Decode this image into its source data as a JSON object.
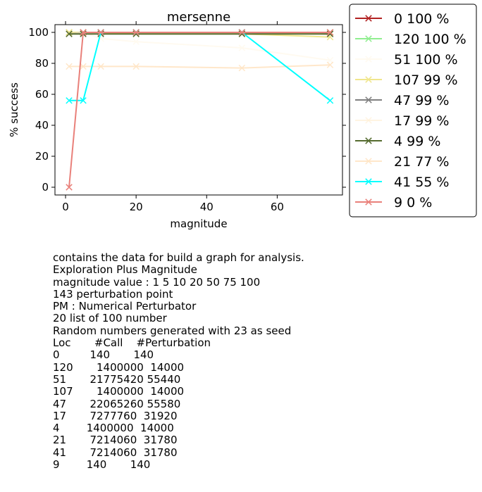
{
  "chart_data": {
    "type": "line",
    "title": "mersenne",
    "xlabel": "magnitude",
    "ylabel": "% success",
    "xlim": [
      -3,
      78.5
    ],
    "ylim": [
      -5,
      105
    ],
    "xticks": [
      0,
      20,
      40,
      60
    ],
    "yticks": [
      0,
      20,
      40,
      60,
      80,
      100
    ],
    "grid": false,
    "legend_position": "outside-right",
    "x": [
      1,
      5,
      10,
      20,
      50,
      75
    ],
    "series": [
      {
        "name": "0 100 %",
        "color": "#b22222",
        "alpha": 1.0,
        "values": [
          100,
          100,
          100,
          100,
          100,
          100
        ]
      },
      {
        "name": "120 100 %",
        "color": "#90ee90",
        "alpha": 1.0,
        "values": [
          100,
          100,
          100,
          100,
          100,
          100
        ]
      },
      {
        "name": "51 100 %",
        "color": "#fffaf0",
        "alpha": 1.0,
        "values": [
          100,
          100,
          96,
          94,
          90,
          82
        ]
      },
      {
        "name": "107 99 %",
        "color": "#f0e68c",
        "alpha": 1.0,
        "values": [
          100,
          100,
          100,
          99,
          99,
          97
        ]
      },
      {
        "name": "47 99 %",
        "color": "#808080",
        "alpha": 1.0,
        "values": [
          99,
          100,
          100,
          100,
          100,
          99
        ]
      },
      {
        "name": "17 99 %",
        "color": "#ffefd5",
        "alpha": 0.7,
        "values": [
          99,
          100,
          100,
          100,
          100,
          99
        ]
      },
      {
        "name": "4 99 %",
        "color": "#556b2f",
        "alpha": 1.0,
        "values": [
          99,
          99,
          99,
          99,
          99,
          99
        ]
      },
      {
        "name": "21 77 %",
        "color": "#ffe4c4",
        "alpha": 0.9,
        "values": [
          78,
          78,
          78,
          78,
          77,
          79
        ]
      },
      {
        "name": "41 55 %",
        "color": "#00ffff",
        "alpha": 1.0,
        "values": [
          56,
          56,
          100,
          100,
          100,
          56
        ]
      },
      {
        "name": "9 0 %",
        "color": "#e9807a",
        "alpha": 1.0,
        "values": [
          0,
          100,
          100,
          100,
          100,
          100
        ]
      }
    ]
  },
  "notes": [
    "contains the data for build a graph for analysis.",
    "Exploration Plus Magnitude",
    "magnitude value : 1 5 10 20 50 75 100",
    "143 perturbation point",
    "PM : Numerical Perturbator",
    "20 list of 100 number",
    "Random numbers generated with 23 as seed",
    "Loc       #Call    #Perturbation",
    "0         140       140",
    "120       1400000  14000",
    "51       21775420 55440",
    "107       1400000  14000",
    "47       22065260 55580",
    "17       7277760  31920",
    "4        1400000  14000",
    "21       7214060  31780",
    "41       7214060  31780",
    "9        140       140"
  ]
}
